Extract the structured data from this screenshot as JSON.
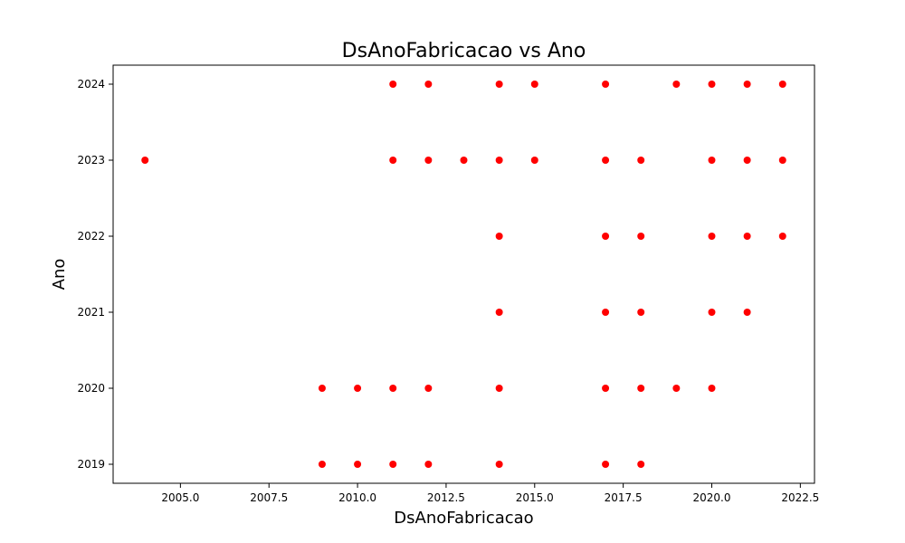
{
  "chart_data": {
    "type": "scatter",
    "title": "DsAnoFabricacao vs Ano",
    "xlabel": "DsAnoFabricacao",
    "ylabel": "Ano",
    "xlim": [
      2003.1,
      2022.9
    ],
    "ylim": [
      2018.75,
      2024.25
    ],
    "xticks": [
      2005.0,
      2007.5,
      2010.0,
      2012.5,
      2015.0,
      2017.5,
      2020.0,
      2022.5
    ],
    "xtick_labels": [
      "2005.0",
      "2007.5",
      "2010.0",
      "2012.5",
      "2015.0",
      "2017.5",
      "2020.0",
      "2022.5"
    ],
    "yticks": [
      2019,
      2020,
      2021,
      2022,
      2023,
      2024
    ],
    "ytick_labels": [
      "2019",
      "2020",
      "2021",
      "2022",
      "2023",
      "2024"
    ],
    "grid": false,
    "marker_color": "#ff0000",
    "points": [
      {
        "x": 2011,
        "y": 2024
      },
      {
        "x": 2012,
        "y": 2024
      },
      {
        "x": 2014,
        "y": 2024
      },
      {
        "x": 2015,
        "y": 2024
      },
      {
        "x": 2017,
        "y": 2024
      },
      {
        "x": 2019,
        "y": 2024
      },
      {
        "x": 2020,
        "y": 2024
      },
      {
        "x": 2021,
        "y": 2024
      },
      {
        "x": 2022,
        "y": 2024
      },
      {
        "x": 2004,
        "y": 2023
      },
      {
        "x": 2011,
        "y": 2023
      },
      {
        "x": 2012,
        "y": 2023
      },
      {
        "x": 2013,
        "y": 2023
      },
      {
        "x": 2014,
        "y": 2023
      },
      {
        "x": 2015,
        "y": 2023
      },
      {
        "x": 2017,
        "y": 2023
      },
      {
        "x": 2018,
        "y": 2023
      },
      {
        "x": 2020,
        "y": 2023
      },
      {
        "x": 2021,
        "y": 2023
      },
      {
        "x": 2022,
        "y": 2023
      },
      {
        "x": 2014,
        "y": 2022
      },
      {
        "x": 2017,
        "y": 2022
      },
      {
        "x": 2018,
        "y": 2022
      },
      {
        "x": 2020,
        "y": 2022
      },
      {
        "x": 2021,
        "y": 2022
      },
      {
        "x": 2022,
        "y": 2022
      },
      {
        "x": 2014,
        "y": 2021
      },
      {
        "x": 2017,
        "y": 2021
      },
      {
        "x": 2018,
        "y": 2021
      },
      {
        "x": 2020,
        "y": 2021
      },
      {
        "x": 2021,
        "y": 2021
      },
      {
        "x": 2009,
        "y": 2020
      },
      {
        "x": 2010,
        "y": 2020
      },
      {
        "x": 2011,
        "y": 2020
      },
      {
        "x": 2012,
        "y": 2020
      },
      {
        "x": 2014,
        "y": 2020
      },
      {
        "x": 2017,
        "y": 2020
      },
      {
        "x": 2018,
        "y": 2020
      },
      {
        "x": 2019,
        "y": 2020
      },
      {
        "x": 2020,
        "y": 2020
      },
      {
        "x": 2009,
        "y": 2019
      },
      {
        "x": 2010,
        "y": 2019
      },
      {
        "x": 2011,
        "y": 2019
      },
      {
        "x": 2012,
        "y": 2019
      },
      {
        "x": 2014,
        "y": 2019
      },
      {
        "x": 2017,
        "y": 2019
      },
      {
        "x": 2018,
        "y": 2019
      }
    ]
  }
}
